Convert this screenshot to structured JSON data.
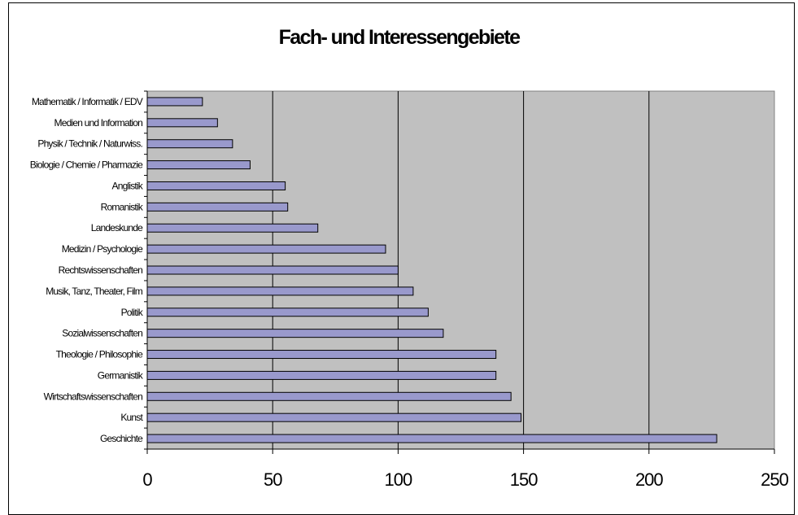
{
  "chart_data": {
    "type": "bar",
    "orientation": "horizontal",
    "title": "Fach- und Interessengebiete",
    "xlabel": "",
    "ylabel": "",
    "xlim": [
      0,
      250
    ],
    "x_ticks": [
      0,
      50,
      100,
      150,
      200,
      250
    ],
    "grid": "vertical",
    "legend": "none",
    "categories": [
      "Mathematik / Informatik / EDV",
      "Medien und Information",
      "Physik / Technik / Naturwiss.",
      "Biologie / Chemie / Pharmazie",
      "Anglistik",
      "Romanistik",
      "Landeskunde",
      "Medizin / Psychologie",
      "Rechtswissenschaften",
      "Musik, Tanz, Theater, Film",
      "Politik",
      "Sozialwissenschaften",
      "Theologie / Philosophie",
      "Germanistik",
      "Wirtschaftswissenschaften",
      "Kunst",
      "Geschichte"
    ],
    "values": [
      22,
      28,
      34,
      41,
      55,
      56,
      68,
      95,
      100,
      106,
      112,
      118,
      139,
      139,
      145,
      149,
      227
    ],
    "colors": {
      "bar": "#9999cc",
      "bar_border": "#000000",
      "plot_background": "#c0c0c0",
      "gridline": "#000000"
    }
  }
}
